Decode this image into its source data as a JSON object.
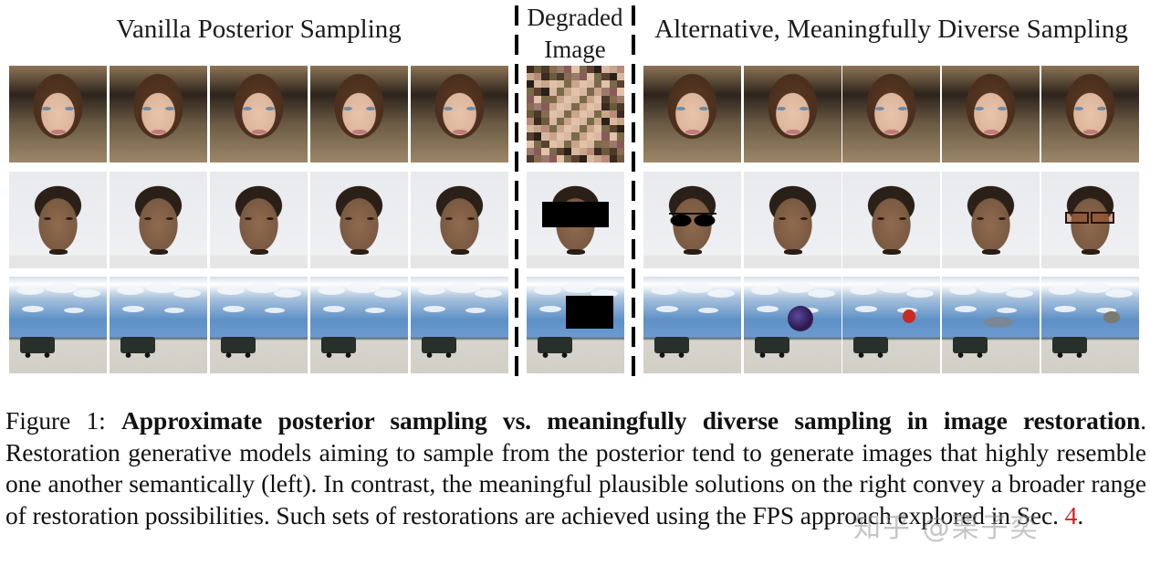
{
  "headers": {
    "left": "Vanilla Posterior Sampling",
    "middle_line1": "Degraded",
    "middle_line2": "Image",
    "right": "Alternative, Meaningfully Diverse Sampling"
  },
  "rows": [
    {
      "name": "female-face",
      "degradation": "pixelation / low resolution",
      "left_samples": [
        "face-f",
        "face-f",
        "face-f",
        "face-f",
        "face-f"
      ],
      "right_samples": [
        "face-f",
        "face-m-like",
        "face-f",
        "face-f",
        "face-f"
      ]
    },
    {
      "name": "male-face",
      "degradation": "black box inpainting mask over eyes",
      "left_samples": [
        "face-m",
        "face-m",
        "face-m",
        "face-m",
        "face-m"
      ],
      "right_samples": [
        "face-m sunglasses",
        "face-m",
        "face-m",
        "face-m eyes-closed",
        "face-m glasses"
      ]
    },
    {
      "name": "desert-jeep",
      "degradation": "black box inpainting mask in sky",
      "left_samples": [
        "sky",
        "sky",
        "sky",
        "sky",
        "sky"
      ],
      "right_samples": [
        "sky",
        "sky hot-air-balloon",
        "sky red-balloon",
        "sky airship",
        "sky parachute"
      ]
    }
  ],
  "caption": {
    "label": "Figure 1: ",
    "bold_title": "Approximate posterior sampling vs. meaningfully diverse sampling in image restoration",
    "text": ". Restoration generative models aiming to sample from the posterior tend to generate images that highly resemble one another semantically (left). In contrast, the meaningful plausible solutions on the right convey a broader range of restoration possibilities. Such sets of restorations are achieved using the FPS approach explored in Sec. ",
    "ref": "4",
    "end": "."
  },
  "watermark": "知乎 @栗子奕",
  "colors": {
    "text": "#111111",
    "ref_link": "#d42020",
    "dash": "#000000"
  }
}
